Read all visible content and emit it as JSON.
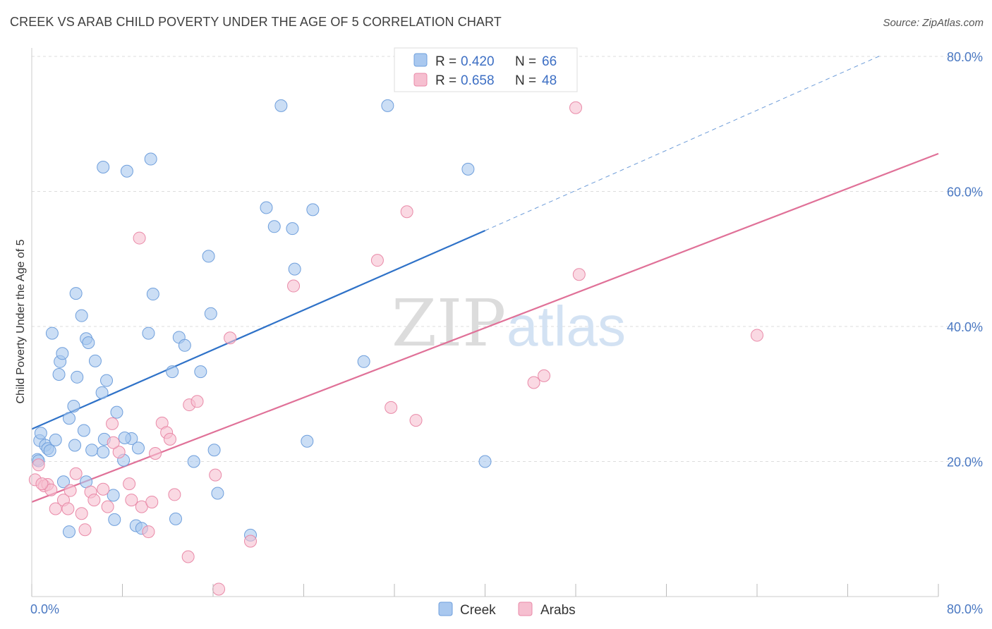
{
  "title": "CREEK VS ARAB CHILD POVERTY UNDER THE AGE OF 5 CORRELATION CHART",
  "source": "Source: ZipAtlas.com",
  "watermark": {
    "zip": "ZIP",
    "atlas": "atlas"
  },
  "colors": {
    "creek_fill": "#a9c8ef",
    "creek_stroke": "#6f9fdc",
    "creek_line": "#2f72c8",
    "arabs_fill": "#f6bfd0",
    "arabs_stroke": "#e98aa8",
    "arabs_line": "#e07198",
    "tick_text": "#4a78c2",
    "grid": "#dddddd"
  },
  "legend": {
    "r_label": "R =",
    "n_label": "N =",
    "items": [
      {
        "r": "0.420",
        "n": "66"
      },
      {
        "r": "0.658",
        "n": "48"
      }
    ]
  },
  "chart_data": {
    "type": "scatter",
    "title": "CREEK VS ARAB CHILD POVERTY UNDER THE AGE OF 5 CORRELATION CHART",
    "xlabel": "",
    "ylabel": "Child Poverty Under the Age of 5",
    "xlim": [
      0,
      80
    ],
    "ylim": [
      0,
      80
    ],
    "x_tick_labels": [
      "0.0%",
      "80.0%"
    ],
    "y_ticks": [
      20,
      40,
      60,
      80
    ],
    "y_tick_labels": [
      "20.0%",
      "40.0%",
      "60.0%",
      "80.0%"
    ],
    "grid": true,
    "legend_position": "top-center",
    "series": [
      {
        "name": "Creek",
        "r": 0.42,
        "n": 66,
        "trend": {
          "x0": 0,
          "y0": 24.8,
          "x1": 40,
          "y1": 54.2,
          "dashed_to_x": 75,
          "dashed_to_y": 80.2
        },
        "points": [
          [
            0.5,
            20.3
          ],
          [
            0.6,
            20.1
          ],
          [
            0.7,
            23.1
          ],
          [
            0.8,
            24.2
          ],
          [
            1.2,
            22.4
          ],
          [
            1.4,
            21.9
          ],
          [
            1.6,
            21.6
          ],
          [
            2.1,
            23.2
          ],
          [
            1.8,
            39.0
          ],
          [
            2.4,
            32.9
          ],
          [
            2.5,
            34.8
          ],
          [
            2.7,
            36.0
          ],
          [
            3.3,
            26.4
          ],
          [
            3.7,
            28.2
          ],
          [
            4.0,
            32.5
          ],
          [
            4.6,
            24.6
          ],
          [
            4.8,
            38.2
          ],
          [
            5.0,
            37.6
          ],
          [
            5.6,
            34.9
          ],
          [
            6.2,
            30.2
          ],
          [
            6.6,
            32.0
          ],
          [
            7.5,
            27.3
          ],
          [
            8.8,
            23.4
          ],
          [
            9.4,
            22.0
          ],
          [
            5.3,
            21.7
          ],
          [
            6.3,
            21.4
          ],
          [
            6.4,
            23.3
          ],
          [
            8.2,
            23.5
          ],
          [
            8.1,
            20.2
          ],
          [
            7.2,
            15.0
          ],
          [
            4.8,
            17.0
          ],
          [
            2.8,
            17.0
          ],
          [
            3.3,
            9.6
          ],
          [
            7.3,
            11.4
          ],
          [
            9.2,
            10.5
          ],
          [
            9.7,
            10.1
          ],
          [
            12.7,
            11.5
          ],
          [
            16.4,
            15.3
          ],
          [
            19.3,
            9.1
          ],
          [
            6.3,
            63.6
          ],
          [
            8.4,
            63.0
          ],
          [
            10.5,
            64.8
          ],
          [
            10.7,
            44.8
          ],
          [
            10.3,
            39.0
          ],
          [
            3.9,
            44.9
          ],
          [
            4.4,
            41.6
          ],
          [
            13.0,
            38.4
          ],
          [
            13.5,
            37.2
          ],
          [
            12.4,
            33.3
          ],
          [
            14.9,
            33.3
          ],
          [
            15.6,
            50.4
          ],
          [
            15.8,
            41.9
          ],
          [
            20.7,
            57.6
          ],
          [
            21.4,
            54.8
          ],
          [
            22.0,
            72.7
          ],
          [
            23.0,
            54.5
          ],
          [
            23.2,
            48.5
          ],
          [
            24.8,
            57.3
          ],
          [
            24.3,
            23.0
          ],
          [
            29.3,
            34.8
          ],
          [
            31.4,
            72.7
          ],
          [
            38.5,
            63.3
          ],
          [
            40.0,
            20.0
          ],
          [
            14.3,
            20.0
          ],
          [
            16.1,
            21.7
          ],
          [
            3.8,
            22.4
          ]
        ]
      },
      {
        "name": "Arabs",
        "r": 0.658,
        "n": 48,
        "trend": {
          "x0": 0,
          "y0": 14.0,
          "x1": 80,
          "y1": 65.6
        },
        "points": [
          [
            0.3,
            17.3
          ],
          [
            0.6,
            19.5
          ],
          [
            1.1,
            16.4
          ],
          [
            1.4,
            16.6
          ],
          [
            1.7,
            15.8
          ],
          [
            2.1,
            13.0
          ],
          [
            2.8,
            14.3
          ],
          [
            3.2,
            13.0
          ],
          [
            3.4,
            15.7
          ],
          [
            3.9,
            18.2
          ],
          [
            4.4,
            12.3
          ],
          [
            4.7,
            9.9
          ],
          [
            5.2,
            15.5
          ],
          [
            5.5,
            14.3
          ],
          [
            6.3,
            15.9
          ],
          [
            6.7,
            13.3
          ],
          [
            7.1,
            25.6
          ],
          [
            7.7,
            21.4
          ],
          [
            8.6,
            16.7
          ],
          [
            8.8,
            14.3
          ],
          [
            9.7,
            13.3
          ],
          [
            10.3,
            9.6
          ],
          [
            10.6,
            14.0
          ],
          [
            10.9,
            21.2
          ],
          [
            11.5,
            25.7
          ],
          [
            11.9,
            24.3
          ],
          [
            12.2,
            23.3
          ],
          [
            12.6,
            15.1
          ],
          [
            13.8,
            5.9
          ],
          [
            13.9,
            28.4
          ],
          [
            14.6,
            28.9
          ],
          [
            16.2,
            18.0
          ],
          [
            16.5,
            1.1
          ],
          [
            17.5,
            38.3
          ],
          [
            19.3,
            8.2
          ],
          [
            9.5,
            53.1
          ],
          [
            23.1,
            46.0
          ],
          [
            30.5,
            49.8
          ],
          [
            33.1,
            57.0
          ],
          [
            31.7,
            28.0
          ],
          [
            33.9,
            26.1
          ],
          [
            44.3,
            31.7
          ],
          [
            45.2,
            32.7
          ],
          [
            48.0,
            72.4
          ],
          [
            48.3,
            47.7
          ],
          [
            64.0,
            38.7
          ],
          [
            7.2,
            22.8
          ],
          [
            0.9,
            16.7
          ]
        ]
      }
    ]
  }
}
